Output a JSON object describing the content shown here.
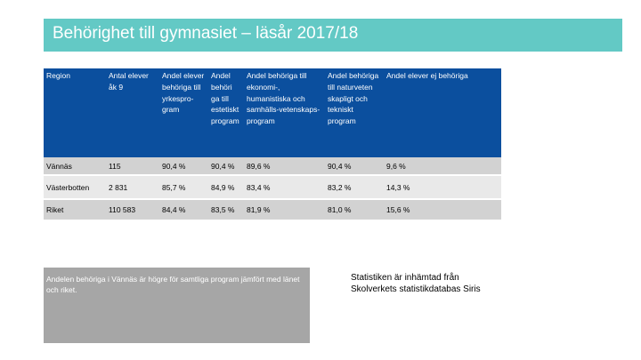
{
  "title": "Behörighet till gymnasiet – läsår 2017/18",
  "table": {
    "headers": [
      "Region",
      "Antal elever åk 9",
      "Andel elever behöriga till yrkespro-gram",
      "Andel behöri ga till estetiskt program",
      "Andel behöriga till ekonomi-, humanistiska och samhälls-vetenskaps-program",
      "Andel behöriga till naturveten skapligt och tekniskt program",
      "Andel elever ej behöriga"
    ],
    "rows": [
      [
        "Vännäs",
        "115",
        "90,4 %",
        "90,4 %",
        "89,6 %",
        "90,4 %",
        "9,6 %"
      ],
      [
        "Västerbotten",
        "2 831",
        "85,7 %",
        "84,9 %",
        "83,4 %",
        "83,2 %",
        "14,3 %"
      ],
      [
        "Riket",
        "110 583",
        "84,4 %",
        "83,5 %",
        "81,9 %",
        "81,0 %",
        "15,6 %"
      ]
    ]
  },
  "note": "Andelen behöriga i Vännäs är högre för samtliga program jämfört med länet och riket.",
  "source": "Statistiken är inhämtad från Skolverkets statistikdatabas Siris"
}
